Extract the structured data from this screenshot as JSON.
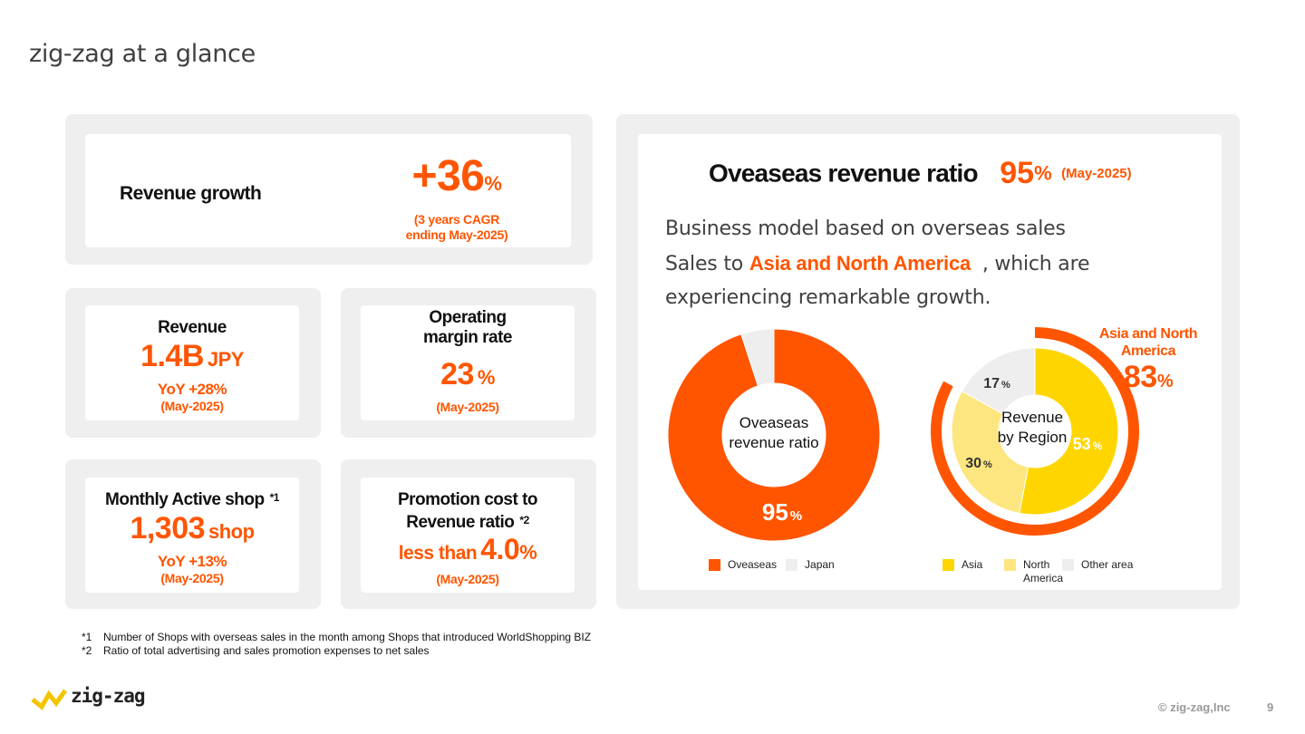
{
  "page": {
    "title": "zig-zag at a glance",
    "page_number": "9",
    "copyright": "© zig-zag,Inc"
  },
  "cards": {
    "revenue_growth": {
      "label": "Revenue growth",
      "value": "+36",
      "unit": "%",
      "note_line1": "(3 years CAGR",
      "note_line2": "ending May-2025)"
    },
    "revenue": {
      "label": "Revenue",
      "value": "1.4B",
      "unit": "JPY",
      "yoy": "YoY +28%",
      "period": "(May-2025)"
    },
    "operating_margin": {
      "label_line1": "Operating",
      "label_line2": "margin rate",
      "value": "23",
      "unit": "%",
      "period": "(May-2025)"
    },
    "monthly_active_shop": {
      "label": "Monthly Active shop",
      "mark": "*1",
      "value": "1,303",
      "unit": "shop",
      "yoy": "YoY +13%",
      "period": "(May-2025)"
    },
    "promotion_cost": {
      "label_line1": "Promotion cost to",
      "label_line2": "Revenue ratio",
      "mark": "*2",
      "prefix": "less than",
      "value": "4.0",
      "unit": "%",
      "period": "(May-2025)"
    }
  },
  "overseas": {
    "heading": "Oveaseas revenue ratio",
    "value": "95",
    "unit": "%",
    "period": "(May-2025)",
    "desc_line1": "Business model based on overseas sales",
    "desc_line2_pre": "Sales to",
    "desc_line2_hl": "Asia and North America",
    "desc_line2_post": ", which are",
    "desc_line3": "experiencing remarkable growth.",
    "asia_na_label_line1": "Asia and North",
    "asia_na_label_line2": "America",
    "asia_na_value": "83",
    "asia_na_unit": "%"
  },
  "chart_data": [
    {
      "type": "pie",
      "center_label": [
        "Oveaseas",
        "revenue ratio"
      ],
      "categories": [
        "Oveaseas",
        "Japan"
      ],
      "values": [
        95,
        5
      ],
      "colors": [
        "#ff5500",
        "#eeeeee"
      ],
      "data_labels": [
        {
          "value": "95",
          "unit": "%"
        }
      ],
      "legend": "bottom"
    },
    {
      "type": "pie",
      "center_label": [
        "Revenue",
        "by Region"
      ],
      "categories": [
        "Asia",
        "North\nAmerica",
        "Other area"
      ],
      "values": [
        53,
        30,
        17
      ],
      "colors": [
        "#ffd500",
        "#fde680",
        "#eeeeee"
      ],
      "data_labels": [
        {
          "value": "53",
          "unit": "%"
        },
        {
          "value": "30",
          "unit": "%"
        },
        {
          "value": "17",
          "unit": "%"
        }
      ],
      "legend": "bottom"
    }
  ],
  "legend1": [
    {
      "label": "Oveaseas",
      "color": "#ff5500"
    },
    {
      "label": "Japan",
      "color": "#eeeeee"
    }
  ],
  "legend2": [
    {
      "label": "Asia",
      "color": "#ffd500"
    },
    {
      "label": "North",
      "label2": "America",
      "color": "#fde680"
    },
    {
      "label": "Other area",
      "color": "#eeeeee"
    }
  ],
  "footnotes": [
    {
      "key": "*1",
      "text": "Number of Shops with overseas sales in the month among Shops that introduced WorldShopping BIZ"
    },
    {
      "key": "*2",
      "text": "Ratio of total advertising and sales promotion expenses to net sales"
    }
  ],
  "logo": {
    "text": "zig-zag",
    "color": "#f5c400"
  }
}
